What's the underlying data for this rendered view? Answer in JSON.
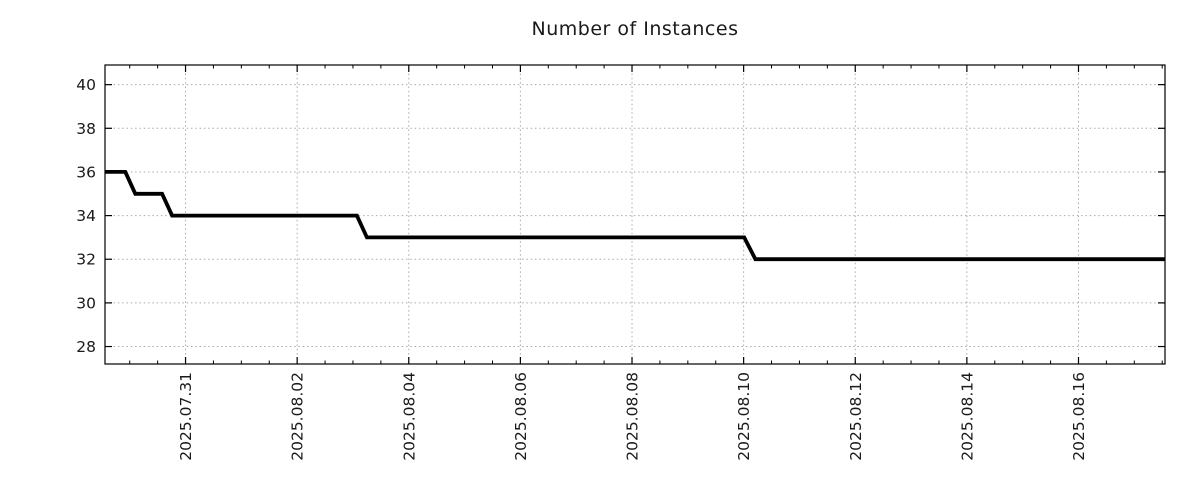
{
  "title": "Number of Instances",
  "colors": {
    "background": "#ffffff",
    "line": "#000000",
    "grid": "#aaaaaa",
    "axis": "#000000",
    "text": "#1a1a1a"
  },
  "chart_data": {
    "type": "line",
    "subtype": "step-like time series",
    "title": "Number of Instances",
    "xlabel": "",
    "ylabel": "",
    "legend_position": "none",
    "grid": true,
    "grid_style": "dotted",
    "x_axis": {
      "epoch": "2025-07-29T00:00",
      "unit": "days-from-epoch",
      "range": [
        0.557,
        19.55
      ],
      "major_tick_days": [
        2,
        4,
        6,
        8,
        10,
        12,
        14,
        16,
        18
      ],
      "major_tick_labels": [
        "2025.07.31",
        "2025.08.02",
        "2025.08.04",
        "2025.08.06",
        "2025.08.08",
        "2025.08.10",
        "2025.08.12",
        "2025.08.14",
        "2025.08.16"
      ],
      "minor_tick_step_days": 0.5,
      "label_rotation_deg": 90
    },
    "y_axis": {
      "range": [
        27.2,
        40.9
      ],
      "major_ticks": [
        28,
        30,
        32,
        34,
        36,
        38,
        40
      ],
      "major_tick_labels": [
        "28",
        "30",
        "32",
        "34",
        "36",
        "38",
        "40"
      ]
    },
    "series": [
      {
        "name": "instances",
        "color": "#000000",
        "points": [
          {
            "time": "2025-07-29T13:30",
            "day": 0.557,
            "value": 36
          },
          {
            "time": "2025-07-29T22:00",
            "day": 0.92,
            "value": 36
          },
          {
            "time": "2025-07-30T02:30",
            "day": 1.1,
            "value": 35
          },
          {
            "time": "2025-07-30T14:00",
            "day": 1.58,
            "value": 35
          },
          {
            "time": "2025-07-30T18:15",
            "day": 1.76,
            "value": 34
          },
          {
            "time": "2025-08-03T01:40",
            "day": 5.07,
            "value": 34
          },
          {
            "time": "2025-08-03T06:00",
            "day": 5.25,
            "value": 33
          },
          {
            "time": "2025-08-10T00:15",
            "day": 12.01,
            "value": 33
          },
          {
            "time": "2025-08-10T05:00",
            "day": 12.21,
            "value": 32
          },
          {
            "time": "2025-08-17T13:00",
            "day": 19.55,
            "value": 32
          }
        ]
      }
    ]
  }
}
